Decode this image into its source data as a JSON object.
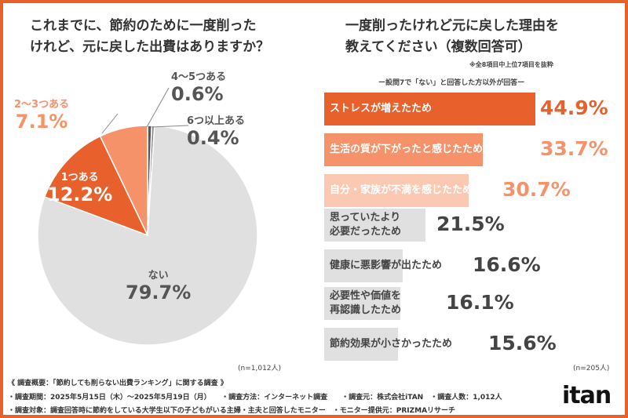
{
  "left": {
    "title_lines": [
      "これまでに、節約のために一度削った",
      "けれど、元に戻した出費はありますか？"
    ],
    "n_note": "(n=1,012人)"
  },
  "right": {
    "title_lines": [
      "一度削ったけれど元に戻した理由を",
      "教えてください（複数回答可）"
    ],
    "note": "※全8項目中上位7項目を抜粋",
    "subtitle": "ー設問7で「ない」と回答した方以外が回答ー",
    "n_note": "(n=205人)"
  },
  "chart_data": [
    {
      "type": "pie",
      "title": "これまでに、節約のために一度削ったけれど、元に戻した出費はありますか？",
      "slices": [
        {
          "label": "4〜5つある",
          "value": 0.6,
          "display": "0.6%",
          "color": "#555555"
        },
        {
          "label": "6つ以上ある",
          "value": 0.4,
          "display": "0.4%",
          "color": "#888888"
        },
        {
          "label": "ない",
          "value": 79.7,
          "display": "79.7%",
          "color": "#e0e0e0"
        },
        {
          "label": "1つある",
          "value": 12.2,
          "display": "12.2%",
          "color": "#e8602c"
        },
        {
          "label": "2〜3つある",
          "value": 7.1,
          "display": "7.1%",
          "color": "#f5926a"
        }
      ]
    },
    {
      "type": "bar",
      "orientation": "horizontal",
      "title": "一度削ったけれど元に戻した理由を教えてください（複数回答可）",
      "categories": [
        "ストレスが増えたため",
        "生活の質が下がったと感じたため",
        "自分・家族が不満を感じたため",
        "思っていたより必要だったため",
        "健康に悪影響が出たため",
        "必要性や価値を再認識したため",
        "節約効果が小さかったため"
      ],
      "label_lines": [
        [
          "ストレスが増えたため"
        ],
        [
          "生活の質が下がったと感じたため"
        ],
        [
          "自分・家族が不満を感じたため"
        ],
        [
          "思っていたより",
          "必要だったため"
        ],
        [
          "健康に悪影響が出たため"
        ],
        [
          "必要性や価値を",
          "再認識したため"
        ],
        [
          "節約効果が小さかったため"
        ]
      ],
      "values": [
        44.9,
        33.7,
        30.7,
        21.5,
        16.6,
        16.1,
        15.6
      ],
      "display": [
        "44.9%",
        "33.7%",
        "30.7%",
        "21.5%",
        "16.6%",
        "16.1%",
        "15.6%"
      ],
      "colors": [
        "#e8602c",
        "#f5926a",
        "#fbc9b2",
        "#e0e0e0",
        "#e0e0e0",
        "#e0e0e0",
        "#e0e0e0"
      ]
    }
  ],
  "footer": {
    "lines": [
      "《 調査概要：「節約しても削らない出費ランキング」に関する調査 》",
      "・調査期間：2025年5月15日（木）〜2025年5月19日（月）　　・調査方法：インターネット調査　　・調査元：株式会社iTAN　・調査人数：1,012人",
      "・調査対象：調査回答時に節約をしている大学生以下の子どもがいる主婦・主夫と回答したモニター　・モニター提供元：PRIZMAリサーチ"
    ],
    "logo": "itan"
  }
}
